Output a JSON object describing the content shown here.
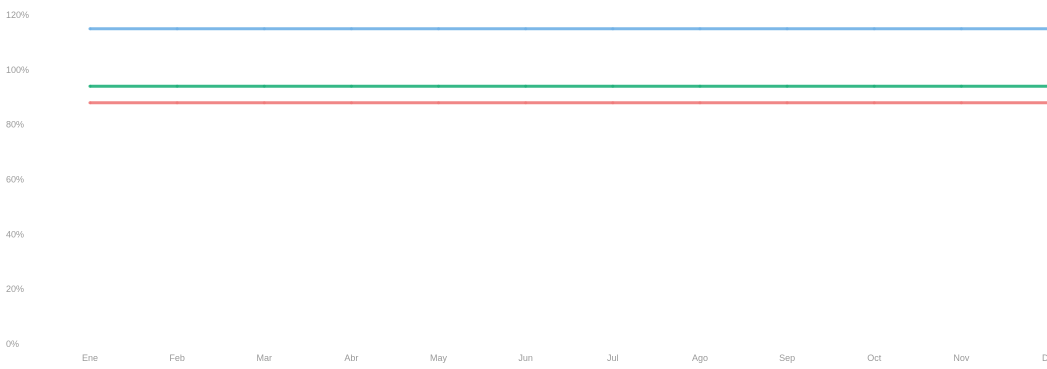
{
  "chart_data": {
    "type": "line",
    "categories": [
      "Ene",
      "Feb",
      "Mar",
      "Abr",
      "May",
      "Jun",
      "Jul",
      "Ago",
      "Sep",
      "Oct",
      "Nov",
      "Dic"
    ],
    "y_ticks": [
      "0%",
      "20%",
      "40%",
      "60%",
      "80%",
      "100%",
      "120%"
    ],
    "ylim": [
      0,
      120
    ],
    "grid": false,
    "legend": "none",
    "series": [
      {
        "color": "#6fb0e6",
        "values": [
          115,
          115,
          115,
          115,
          115,
          115,
          115,
          115,
          115,
          115,
          115,
          115
        ]
      },
      {
        "color": "#1fb07a",
        "values": [
          94,
          94,
          94,
          94,
          94,
          94,
          94,
          94,
          94,
          94,
          94,
          94
        ]
      },
      {
        "color": "#ee7a7a",
        "values": [
          88,
          88,
          88,
          88,
          88,
          88,
          88,
          88,
          88,
          88,
          88,
          88
        ]
      }
    ]
  }
}
